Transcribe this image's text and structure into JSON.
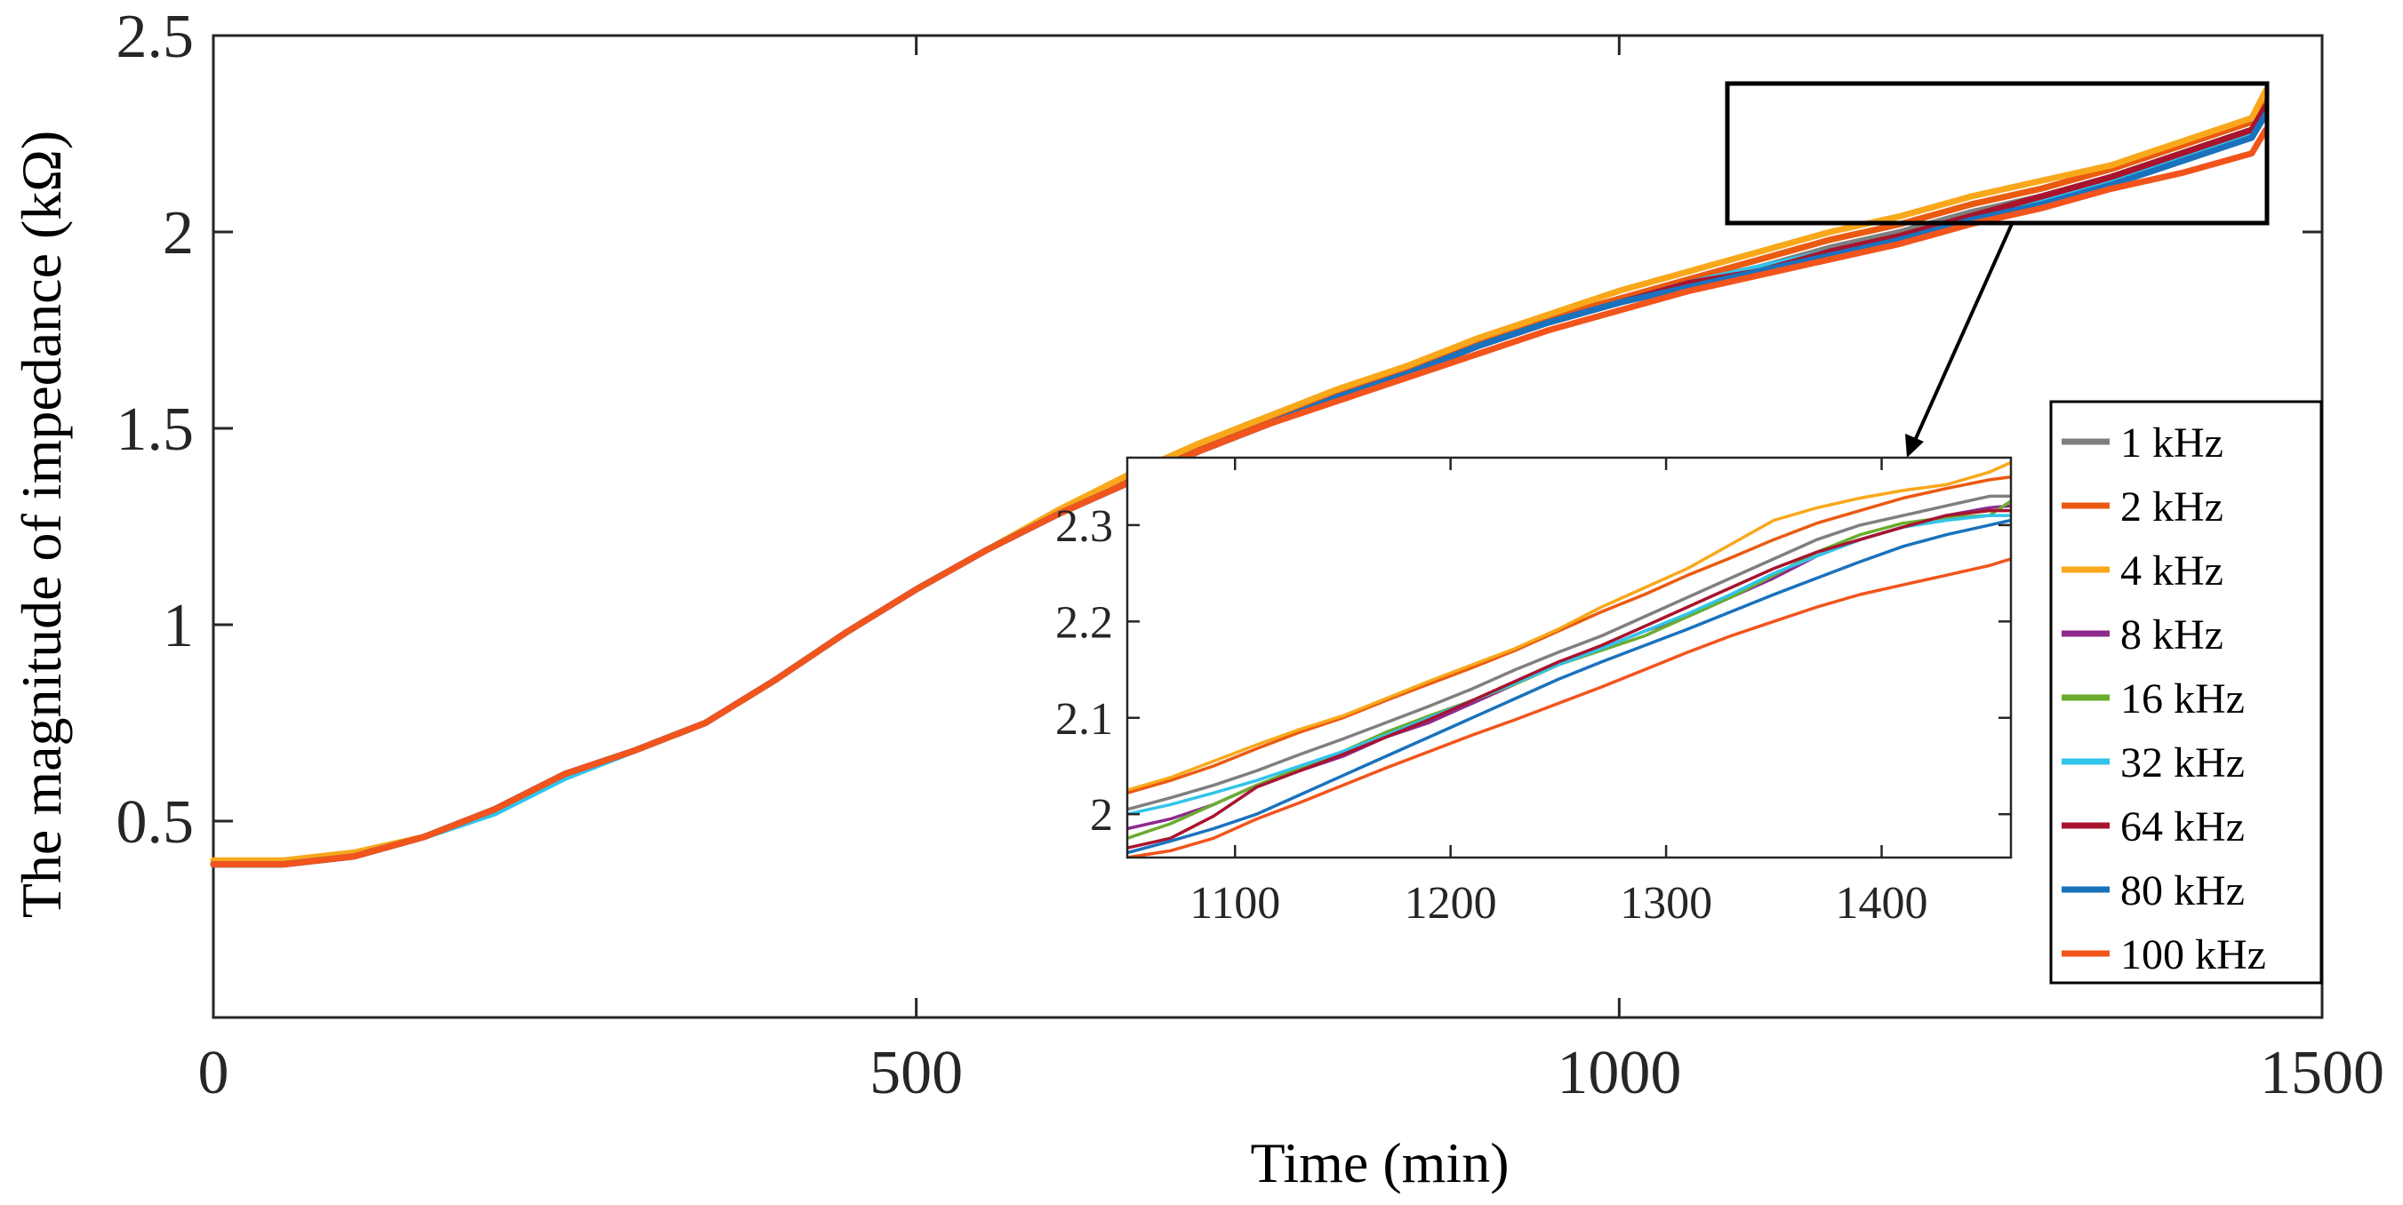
{
  "chart_data": {
    "type": "line",
    "title": "",
    "xlabel": "Time (min)",
    "ylabel": "The magnitude of impedance (kΩ)",
    "xlim": [
      0,
      1500
    ],
    "ylim": [
      0,
      2.5
    ],
    "xticks": [
      "0",
      "500",
      "1000",
      "1500"
    ],
    "yticks": [
      "0.5",
      "1",
      "1.5",
      "2",
      "2.5"
    ],
    "legend_position": "right",
    "colors": {
      "1 kHz": "#7f7f7f",
      "2 kHz": "#ea5a10",
      "4 kHz": "#f9a81b",
      "8 kHz": "#8e2a8e",
      "16 kHz": "#6aad2e",
      "32 kHz": "#31c4ea",
      "64 kHz": "#a8132e",
      "80 kHz": "#1a72bd",
      "100 kHz": "#f2541c"
    },
    "series": [
      {
        "name": "1 kHz",
        "x": [
          0,
          50,
          100,
          150,
          200,
          250,
          300,
          350,
          400,
          450,
          500,
          550,
          600,
          650,
          700,
          750,
          800,
          850,
          900,
          950,
          1000,
          1050,
          1100,
          1150,
          1200,
          1250,
          1300,
          1350,
          1400,
          1450,
          1460
        ],
        "y": [
          0.39,
          0.39,
          0.41,
          0.46,
          0.53,
          0.62,
          0.68,
          0.75,
          0.86,
          0.98,
          1.09,
          1.19,
          1.28,
          1.36,
          1.44,
          1.51,
          1.58,
          1.64,
          1.71,
          1.77,
          1.82,
          1.87,
          1.91,
          1.96,
          2.0,
          2.05,
          2.09,
          2.14,
          2.2,
          2.26,
          2.33
        ]
      },
      {
        "name": "2 kHz",
        "x": [
          0,
          50,
          100,
          150,
          200,
          250,
          300,
          350,
          400,
          450,
          500,
          550,
          600,
          650,
          700,
          750,
          800,
          850,
          900,
          950,
          1000,
          1050,
          1100,
          1150,
          1200,
          1250,
          1300,
          1350,
          1400,
          1450,
          1460
        ],
        "y": [
          0.4,
          0.39,
          0.41,
          0.46,
          0.53,
          0.62,
          0.68,
          0.75,
          0.86,
          0.98,
          1.09,
          1.19,
          1.28,
          1.37,
          1.45,
          1.52,
          1.59,
          1.65,
          1.72,
          1.78,
          1.83,
          1.88,
          1.93,
          1.98,
          2.02,
          2.07,
          2.11,
          2.16,
          2.22,
          2.28,
          2.35
        ]
      },
      {
        "name": "4 kHz",
        "x": [
          0,
          50,
          100,
          150,
          200,
          250,
          300,
          350,
          400,
          450,
          500,
          550,
          600,
          650,
          700,
          750,
          800,
          850,
          900,
          950,
          1000,
          1050,
          1100,
          1150,
          1200,
          1250,
          1300,
          1350,
          1400,
          1450,
          1460
        ],
        "y": [
          0.4,
          0.4,
          0.42,
          0.46,
          0.53,
          0.62,
          0.68,
          0.75,
          0.86,
          0.98,
          1.09,
          1.19,
          1.29,
          1.38,
          1.46,
          1.53,
          1.6,
          1.66,
          1.73,
          1.79,
          1.85,
          1.9,
          1.95,
          2.0,
          2.04,
          2.09,
          2.13,
          2.17,
          2.23,
          2.29,
          2.36
        ]
      },
      {
        "name": "8 kHz",
        "x": [
          0,
          50,
          100,
          150,
          200,
          250,
          300,
          350,
          400,
          450,
          500,
          550,
          600,
          650,
          700,
          750,
          800,
          850,
          900,
          950,
          1000,
          1050,
          1100,
          1150,
          1200,
          1250,
          1300,
          1350,
          1400,
          1450,
          1460
        ],
        "y": [
          0.39,
          0.39,
          0.41,
          0.46,
          0.53,
          0.62,
          0.68,
          0.75,
          0.86,
          0.98,
          1.09,
          1.19,
          1.28,
          1.36,
          1.44,
          1.51,
          1.58,
          1.64,
          1.71,
          1.77,
          1.82,
          1.87,
          1.91,
          1.95,
          1.99,
          2.04,
          2.09,
          2.14,
          2.2,
          2.26,
          2.32
        ]
      },
      {
        "name": "16 kHz",
        "x": [
          0,
          50,
          100,
          150,
          200,
          250,
          300,
          350,
          400,
          450,
          500,
          550,
          600,
          650,
          700,
          750,
          800,
          850,
          900,
          950,
          1000,
          1050,
          1100,
          1150,
          1200,
          1250,
          1300,
          1350,
          1400,
          1450,
          1460
        ],
        "y": [
          0.39,
          0.39,
          0.41,
          0.46,
          0.53,
          0.62,
          0.68,
          0.75,
          0.86,
          0.98,
          1.09,
          1.19,
          1.28,
          1.36,
          1.44,
          1.51,
          1.58,
          1.64,
          1.71,
          1.77,
          1.82,
          1.87,
          1.91,
          1.95,
          1.99,
          2.04,
          2.09,
          2.14,
          2.2,
          2.26,
          2.32
        ]
      },
      {
        "name": "32 kHz",
        "x": [
          0,
          50,
          100,
          150,
          200,
          250,
          300,
          350,
          400,
          450,
          500,
          550,
          600,
          650,
          700,
          750,
          800,
          850,
          900,
          950,
          1000,
          1050,
          1100,
          1150,
          1200,
          1250,
          1300,
          1350,
          1400,
          1450,
          1460
        ],
        "y": [
          0.39,
          0.39,
          0.41,
          0.46,
          0.52,
          0.61,
          0.68,
          0.75,
          0.86,
          0.98,
          1.09,
          1.19,
          1.28,
          1.36,
          1.44,
          1.51,
          1.58,
          1.64,
          1.71,
          1.77,
          1.82,
          1.87,
          1.91,
          1.95,
          1.99,
          2.03,
          2.08,
          2.13,
          2.19,
          2.25,
          2.31
        ]
      },
      {
        "name": "64 kHz",
        "x": [
          0,
          50,
          100,
          150,
          200,
          250,
          300,
          350,
          400,
          450,
          500,
          550,
          600,
          650,
          700,
          750,
          800,
          850,
          900,
          950,
          1000,
          1050,
          1100,
          1150,
          1200,
          1250,
          1300,
          1350,
          1400,
          1450,
          1460
        ],
        "y": [
          0.39,
          0.39,
          0.41,
          0.46,
          0.53,
          0.62,
          0.68,
          0.75,
          0.86,
          0.98,
          1.09,
          1.19,
          1.28,
          1.36,
          1.44,
          1.51,
          1.58,
          1.64,
          1.71,
          1.77,
          1.82,
          1.87,
          1.9,
          1.95,
          1.99,
          2.04,
          2.09,
          2.14,
          2.2,
          2.26,
          2.32
        ]
      },
      {
        "name": "80 kHz",
        "x": [
          0,
          50,
          100,
          150,
          200,
          250,
          300,
          350,
          400,
          450,
          500,
          550,
          600,
          650,
          700,
          750,
          800,
          850,
          900,
          950,
          1000,
          1050,
          1100,
          1150,
          1200,
          1250,
          1300,
          1350,
          1400,
          1450,
          1460
        ],
        "y": [
          0.39,
          0.39,
          0.41,
          0.46,
          0.53,
          0.62,
          0.68,
          0.75,
          0.86,
          0.98,
          1.09,
          1.19,
          1.28,
          1.36,
          1.44,
          1.51,
          1.58,
          1.64,
          1.71,
          1.77,
          1.82,
          1.86,
          1.9,
          1.94,
          1.98,
          2.03,
          2.07,
          2.12,
          2.18,
          2.24,
          2.3
        ]
      },
      {
        "name": "100 kHz",
        "x": [
          0,
          50,
          100,
          150,
          200,
          250,
          300,
          350,
          400,
          450,
          500,
          550,
          600,
          650,
          700,
          750,
          800,
          850,
          900,
          950,
          1000,
          1050,
          1100,
          1150,
          1200,
          1250,
          1300,
          1350,
          1400,
          1450,
          1460
        ],
        "y": [
          0.39,
          0.39,
          0.41,
          0.46,
          0.53,
          0.62,
          0.68,
          0.75,
          0.86,
          0.98,
          1.09,
          1.19,
          1.28,
          1.36,
          1.44,
          1.51,
          1.57,
          1.63,
          1.69,
          1.75,
          1.8,
          1.85,
          1.89,
          1.93,
          1.97,
          2.02,
          2.06,
          2.11,
          2.15,
          2.2,
          2.26
        ]
      }
    ],
    "inset": {
      "xlim": [
        1050,
        1460
      ],
      "ylim": [
        1.955,
        2.37
      ],
      "xticks": [
        "1100",
        "1200",
        "1300",
        "1400"
      ],
      "yticks": [
        "2",
        "2.1",
        "2.2",
        "2.3"
      ],
      "series": [
        {
          "name": "1 kHz",
          "x": [
            1050,
            1070,
            1090,
            1110,
            1130,
            1150,
            1170,
            1190,
            1210,
            1230,
            1250,
            1270,
            1290,
            1310,
            1330,
            1350,
            1370,
            1390,
            1410,
            1430,
            1450,
            1460
          ],
          "y": [
            2.005,
            2.017,
            2.03,
            2.045,
            2.062,
            2.078,
            2.095,
            2.112,
            2.13,
            2.15,
            2.168,
            2.185,
            2.205,
            2.225,
            2.245,
            2.265,
            2.285,
            2.3,
            2.31,
            2.32,
            2.33,
            2.33
          ]
        },
        {
          "name": "2 kHz",
          "x": [
            1050,
            1070,
            1090,
            1110,
            1130,
            1150,
            1170,
            1190,
            1210,
            1230,
            1250,
            1270,
            1290,
            1310,
            1330,
            1350,
            1370,
            1390,
            1410,
            1430,
            1450,
            1460
          ],
          "y": [
            2.022,
            2.035,
            2.05,
            2.068,
            2.085,
            2.1,
            2.118,
            2.135,
            2.152,
            2.17,
            2.19,
            2.21,
            2.228,
            2.248,
            2.266,
            2.285,
            2.302,
            2.315,
            2.328,
            2.338,
            2.347,
            2.35
          ]
        },
        {
          "name": "4 kHz",
          "x": [
            1050,
            1070,
            1090,
            1110,
            1130,
            1150,
            1170,
            1190,
            1210,
            1230,
            1250,
            1270,
            1290,
            1310,
            1330,
            1350,
            1370,
            1390,
            1410,
            1430,
            1450,
            1460
          ],
          "y": [
            2.025,
            2.038,
            2.055,
            2.072,
            2.088,
            2.102,
            2.12,
            2.138,
            2.155,
            2.172,
            2.192,
            2.215,
            2.235,
            2.255,
            2.28,
            2.305,
            2.318,
            2.328,
            2.336,
            2.342,
            2.355,
            2.365
          ]
        },
        {
          "name": "8 kHz",
          "x": [
            1050,
            1070,
            1090,
            1110,
            1130,
            1150,
            1170,
            1190,
            1210,
            1230,
            1250,
            1270,
            1290,
            1310,
            1330,
            1350,
            1370,
            1390,
            1410,
            1430,
            1450,
            1460
          ],
          "y": [
            1.985,
            1.995,
            2.01,
            2.03,
            2.045,
            2.06,
            2.08,
            2.095,
            2.115,
            2.135,
            2.155,
            2.172,
            2.19,
            2.205,
            2.225,
            2.245,
            2.268,
            2.285,
            2.298,
            2.31,
            2.318,
            2.32
          ]
        },
        {
          "name": "16 kHz",
          "x": [
            1050,
            1070,
            1090,
            1110,
            1130,
            1150,
            1170,
            1190,
            1210,
            1230,
            1250,
            1270,
            1290,
            1310,
            1330,
            1350,
            1370,
            1390,
            1410,
            1430,
            1450,
            1460
          ],
          "y": [
            1.975,
            1.99,
            2.01,
            2.03,
            2.048,
            2.065,
            2.085,
            2.102,
            2.118,
            2.135,
            2.155,
            2.17,
            2.185,
            2.205,
            2.225,
            2.248,
            2.272,
            2.29,
            2.302,
            2.308,
            2.31,
            2.325
          ]
        },
        {
          "name": "32 kHz",
          "x": [
            1050,
            1070,
            1090,
            1110,
            1130,
            1150,
            1170,
            1190,
            1210,
            1230,
            1250,
            1270,
            1290,
            1310,
            1330,
            1350,
            1370,
            1390,
            1410,
            1430,
            1450,
            1460
          ],
          "y": [
            2.0,
            2.01,
            2.022,
            2.035,
            2.05,
            2.065,
            2.082,
            2.1,
            2.118,
            2.136,
            2.155,
            2.172,
            2.19,
            2.208,
            2.228,
            2.25,
            2.268,
            2.285,
            2.298,
            2.305,
            2.31,
            2.31
          ]
        },
        {
          "name": "64 kHz",
          "x": [
            1050,
            1070,
            1090,
            1110,
            1130,
            1150,
            1170,
            1190,
            1210,
            1230,
            1250,
            1270,
            1290,
            1310,
            1330,
            1350,
            1370,
            1390,
            1410,
            1430,
            1450,
            1460
          ],
          "y": [
            1.965,
            1.975,
            1.998,
            2.028,
            2.045,
            2.062,
            2.08,
            2.098,
            2.118,
            2.138,
            2.158,
            2.175,
            2.195,
            2.215,
            2.235,
            2.255,
            2.272,
            2.285,
            2.298,
            2.31,
            2.315,
            2.315
          ]
        },
        {
          "name": "80 kHz",
          "x": [
            1050,
            1070,
            1090,
            1110,
            1130,
            1150,
            1170,
            1190,
            1210,
            1230,
            1250,
            1270,
            1290,
            1310,
            1330,
            1350,
            1370,
            1390,
            1410,
            1430,
            1450,
            1460
          ],
          "y": [
            1.96,
            1.972,
            1.985,
            2.0,
            2.02,
            2.04,
            2.06,
            2.08,
            2.1,
            2.12,
            2.14,
            2.158,
            2.175,
            2.192,
            2.21,
            2.228,
            2.245,
            2.262,
            2.278,
            2.29,
            2.3,
            2.305
          ]
        },
        {
          "name": "100 kHz",
          "x": [
            1050,
            1070,
            1090,
            1110,
            1130,
            1150,
            1170,
            1190,
            1210,
            1230,
            1250,
            1270,
            1290,
            1310,
            1330,
            1350,
            1370,
            1390,
            1410,
            1430,
            1450,
            1460
          ],
          "y": [
            1.955,
            1.962,
            1.975,
            1.995,
            2.012,
            2.03,
            2.048,
            2.065,
            2.082,
            2.098,
            2.115,
            2.132,
            2.15,
            2.168,
            2.185,
            2.2,
            2.215,
            2.228,
            2.238,
            2.248,
            2.258,
            2.265
          ]
        }
      ]
    }
  }
}
